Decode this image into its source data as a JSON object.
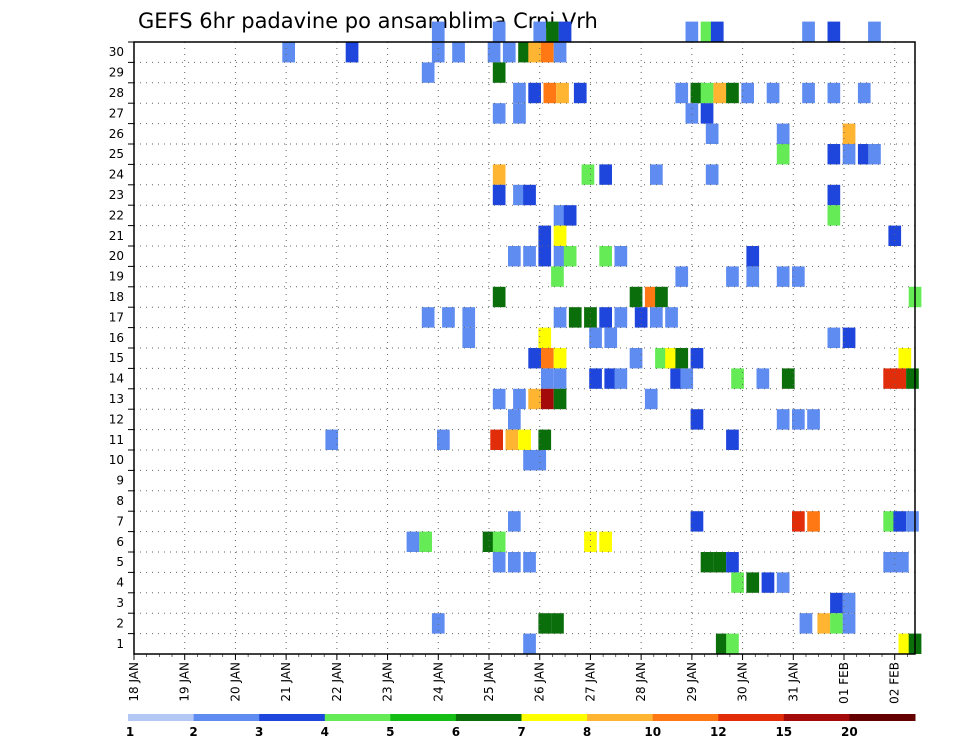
{
  "chart_data": {
    "type": "heatmap",
    "title": "GEFS 6hr padavine po ansamblima Crni Vrh",
    "y_ticks": [
      "1",
      "2",
      "3",
      "4",
      "5",
      "6",
      "7",
      "8",
      "9",
      "10",
      "11",
      "12",
      "13",
      "14",
      "15",
      "16",
      "17",
      "18",
      "19",
      "20",
      "21",
      "22",
      "23",
      "24",
      "25",
      "26",
      "27",
      "28",
      "29",
      "30"
    ],
    "ylim": [
      0,
      30
    ],
    "x_ticks": [
      "18 JAN",
      "19 JAN",
      "20 JAN",
      "21 JAN",
      "22 JAN",
      "23 JAN",
      "24 JAN",
      "25 JAN",
      "26 JAN",
      "27 JAN",
      "28 JAN",
      "29 JAN",
      "30 JAN",
      "31 JAN",
      "01 FEB",
      "02 FEB"
    ],
    "xlim_days": [
      0,
      15.4
    ],
    "grid": true,
    "legend": {
      "placement": "bottom",
      "levels": [
        "1",
        "2",
        "3",
        "4",
        "5",
        "6",
        "7",
        "8",
        "10",
        "12",
        "15",
        "20"
      ],
      "colors": [
        "#b4c8f5",
        "#5f8cf0",
        "#1e46dc",
        "#64eb55",
        "#14be14",
        "#0a6e0a",
        "#ffff00",
        "#ffb432",
        "#ff7814",
        "#e12d0a",
        "#a50a0a",
        "#640000"
      ]
    },
    "x_unit": "days since 18 JAN (6h step)",
    "cells": [
      [
        29,
        3.05,
        1
      ],
      [
        29,
        4.3,
        2
      ],
      [
        29,
        6.0,
        1
      ],
      [
        29,
        6.4,
        1
      ],
      [
        29,
        7.1,
        1
      ],
      [
        29,
        7.4,
        1
      ],
      [
        29,
        7.7,
        5
      ],
      [
        29,
        7.9,
        7
      ],
      [
        29,
        8.15,
        8
      ],
      [
        29,
        8.4,
        1
      ],
      [
        30,
        6.0,
        1
      ],
      [
        30,
        7.2,
        1
      ],
      [
        30,
        8.0,
        1
      ],
      [
        30,
        8.25,
        5
      ],
      [
        30,
        8.5,
        2
      ],
      [
        30,
        11.3,
        3
      ],
      [
        30,
        11.0,
        1
      ],
      [
        30,
        11.5,
        2
      ],
      [
        30,
        13.3,
        1
      ],
      [
        30,
        13.8,
        2
      ],
      [
        30,
        14.6,
        1
      ],
      [
        28,
        5.8,
        1
      ],
      [
        28,
        7.2,
        5
      ],
      [
        27,
        7.6,
        1
      ],
      [
        27,
        7.9,
        2
      ],
      [
        27,
        8.2,
        8
      ],
      [
        27,
        8.45,
        7
      ],
      [
        27,
        8.8,
        2
      ],
      [
        27,
        10.8,
        1
      ],
      [
        27,
        11.1,
        5
      ],
      [
        27,
        11.3,
        3
      ],
      [
        27,
        11.55,
        7
      ],
      [
        27,
        11.8,
        5
      ],
      [
        27,
        12.1,
        1
      ],
      [
        27,
        12.6,
        1
      ],
      [
        27,
        13.3,
        1
      ],
      [
        27,
        13.8,
        1
      ],
      [
        27,
        14.4,
        1
      ],
      [
        26,
        7.2,
        1
      ],
      [
        26,
        7.6,
        1
      ],
      [
        26,
        11.0,
        1
      ],
      [
        26,
        11.3,
        2
      ],
      [
        25,
        11.4,
        1
      ],
      [
        25,
        12.8,
        1
      ],
      [
        25,
        14.1,
        7
      ],
      [
        24,
        12.8,
        3
      ],
      [
        24,
        13.8,
        2
      ],
      [
        24,
        14.1,
        1
      ],
      [
        24,
        14.4,
        2
      ],
      [
        24,
        14.6,
        1
      ],
      [
        23,
        7.2,
        7
      ],
      [
        23,
        8.95,
        3
      ],
      [
        23,
        9.3,
        2
      ],
      [
        23,
        10.3,
        1
      ],
      [
        23,
        11.4,
        1
      ],
      [
        22,
        7.2,
        2
      ],
      [
        22,
        7.6,
        1
      ],
      [
        22,
        7.8,
        2
      ],
      [
        22,
        13.8,
        2
      ],
      [
        21,
        8.4,
        1
      ],
      [
        21,
        8.6,
        2
      ],
      [
        21,
        13.8,
        3
      ],
      [
        20,
        8.1,
        2
      ],
      [
        20,
        8.4,
        6
      ],
      [
        20,
        15.0,
        2
      ],
      [
        19,
        7.5,
        1
      ],
      [
        19,
        7.8,
        1
      ],
      [
        19,
        8.1,
        2
      ],
      [
        19,
        8.4,
        1
      ],
      [
        19,
        8.6,
        3
      ],
      [
        19,
        9.3,
        3
      ],
      [
        19,
        9.6,
        1
      ],
      [
        19,
        12.2,
        2
      ],
      [
        18,
        8.35,
        3
      ],
      [
        18,
        10.8,
        1
      ],
      [
        18,
        11.8,
        1
      ],
      [
        18,
        12.2,
        1
      ],
      [
        18,
        12.8,
        1
      ],
      [
        18,
        13.1,
        1
      ],
      [
        17,
        7.2,
        5
      ],
      [
        17,
        9.9,
        5
      ],
      [
        17,
        10.2,
        8
      ],
      [
        17,
        10.4,
        5
      ],
      [
        17,
        15.4,
        3
      ],
      [
        16,
        5.8,
        1
      ],
      [
        16,
        6.2,
        1
      ],
      [
        16,
        6.6,
        1
      ],
      [
        16,
        8.4,
        1
      ],
      [
        16,
        8.7,
        5
      ],
      [
        16,
        9.0,
        5
      ],
      [
        16,
        9.3,
        2
      ],
      [
        16,
        9.6,
        1
      ],
      [
        16,
        10.0,
        2
      ],
      [
        16,
        10.3,
        1
      ],
      [
        16,
        10.6,
        1
      ],
      [
        15,
        6.6,
        1
      ],
      [
        15,
        8.1,
        6
      ],
      [
        15,
        9.1,
        1
      ],
      [
        15,
        9.4,
        1
      ],
      [
        15,
        13.8,
        1
      ],
      [
        15,
        14.1,
        2
      ],
      [
        14,
        7.9,
        2
      ],
      [
        14,
        8.15,
        8
      ],
      [
        14,
        8.4,
        6
      ],
      [
        14,
        9.9,
        1
      ],
      [
        14,
        10.4,
        3
      ],
      [
        14,
        10.6,
        6
      ],
      [
        14,
        10.8,
        5
      ],
      [
        14,
        11.1,
        2
      ],
      [
        14,
        15.2,
        6
      ],
      [
        13,
        8.15,
        1
      ],
      [
        13,
        8.4,
        1
      ],
      [
        13,
        9.1,
        2
      ],
      [
        13,
        9.4,
        2
      ],
      [
        13,
        9.6,
        1
      ],
      [
        13,
        10.7,
        2
      ],
      [
        13,
        10.9,
        1
      ],
      [
        13,
        11.9,
        3
      ],
      [
        13,
        12.4,
        1
      ],
      [
        13,
        12.9,
        5
      ],
      [
        13,
        14.9,
        9
      ],
      [
        13,
        15.1,
        9
      ],
      [
        13,
        15.35,
        5
      ],
      [
        12,
        7.2,
        1
      ],
      [
        12,
        7.6,
        1
      ],
      [
        12,
        7.9,
        7
      ],
      [
        12,
        8.15,
        10
      ],
      [
        12,
        8.4,
        5
      ],
      [
        12,
        10.2,
        1
      ],
      [
        11,
        7.5,
        1
      ],
      [
        11,
        12.8,
        1
      ],
      [
        11,
        11.1,
        2
      ],
      [
        11,
        13.1,
        1
      ],
      [
        11,
        13.4,
        1
      ],
      [
        10,
        3.9,
        1
      ],
      [
        10,
        6.1,
        1
      ],
      [
        10,
        7.15,
        9
      ],
      [
        10,
        7.45,
        7
      ],
      [
        10,
        7.7,
        6
      ],
      [
        10,
        8.1,
        5
      ],
      [
        10,
        11.8,
        2
      ],
      [
        9,
        7.8,
        1
      ],
      [
        9,
        8.0,
        1
      ],
      [
        6,
        7.5,
        1
      ],
      [
        6,
        11.1,
        2
      ],
      [
        6,
        13.1,
        9
      ],
      [
        6,
        13.4,
        8
      ],
      [
        6,
        14.9,
        3
      ],
      [
        6,
        15.1,
        2
      ],
      [
        6,
        15.35,
        1
      ],
      [
        5,
        5.5,
        1
      ],
      [
        5,
        5.75,
        3
      ],
      [
        5,
        7.0,
        5
      ],
      [
        5,
        7.2,
        3
      ],
      [
        5,
        9.0,
        6
      ],
      [
        5,
        9.3,
        6
      ],
      [
        4,
        7.2,
        1
      ],
      [
        4,
        7.5,
        1
      ],
      [
        4,
        7.8,
        1
      ],
      [
        4,
        11.3,
        5
      ],
      [
        4,
        11.55,
        5
      ],
      [
        4,
        11.8,
        2
      ],
      [
        4,
        14.9,
        1
      ],
      [
        4,
        15.15,
        1
      ],
      [
        3,
        11.9,
        3
      ],
      [
        3,
        12.2,
        5
      ],
      [
        3,
        12.5,
        2
      ],
      [
        3,
        12.8,
        1
      ],
      [
        2,
        13.85,
        2
      ],
      [
        2,
        14.1,
        1
      ],
      [
        1,
        6.0,
        1
      ],
      [
        1,
        8.1,
        5
      ],
      [
        1,
        8.35,
        5
      ],
      [
        1,
        13.25,
        1
      ],
      [
        1,
        13.6,
        7
      ],
      [
        1,
        13.85,
        3
      ],
      [
        1,
        14.1,
        1
      ],
      [
        0,
        7.8,
        1
      ],
      [
        0,
        11.6,
        5
      ],
      [
        0,
        11.8,
        3
      ],
      [
        0,
        15.2,
        6
      ],
      [
        0,
        15.4,
        5
      ]
    ]
  }
}
